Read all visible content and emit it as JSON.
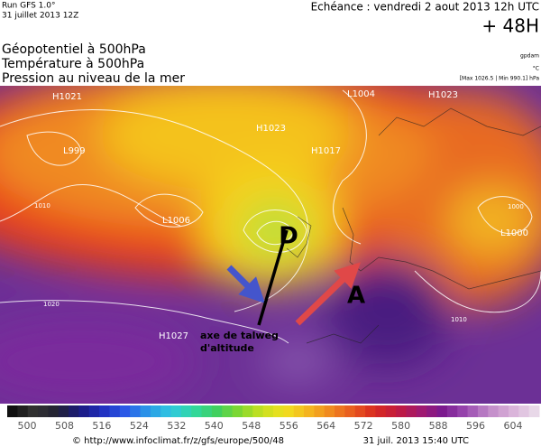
{
  "header": {
    "run": "Run GFS 1.0°",
    "run_date": "31 juillet 2013 12Z",
    "echeance": "Echéance : vendredi 2 aout 2013 12h UTC",
    "offset": "+ 48H",
    "units": [
      "gpdam",
      "°C",
      "[Max 1026.5 | Min 990.1] hPa"
    ],
    "fields": [
      "Géopotentiel à 500hPa",
      "Température à 500hPa",
      "Pression au niveau de la mer"
    ]
  },
  "map": {
    "centers": [
      "H1021",
      "L999",
      "H1023",
      "L1006",
      "H1017",
      "L1004",
      "H1023",
      "L1000",
      "H1027"
    ],
    "isobar_labels": [
      "1010",
      "1020",
      "1010",
      "1000"
    ],
    "markers": [
      "D",
      "A"
    ],
    "annotation": [
      "axe de talweg",
      "d'altitude"
    ]
  },
  "color_scale": {
    "labels": [
      500,
      508,
      516,
      524,
      532,
      540,
      548,
      556,
      564,
      572,
      580,
      588,
      596,
      604
    ]
  },
  "footer": {
    "source": "© http://www.infoclimat.fr/z/gfs/europe/500/48",
    "timestamp": "31 juil. 2013 15:40 UTC"
  }
}
